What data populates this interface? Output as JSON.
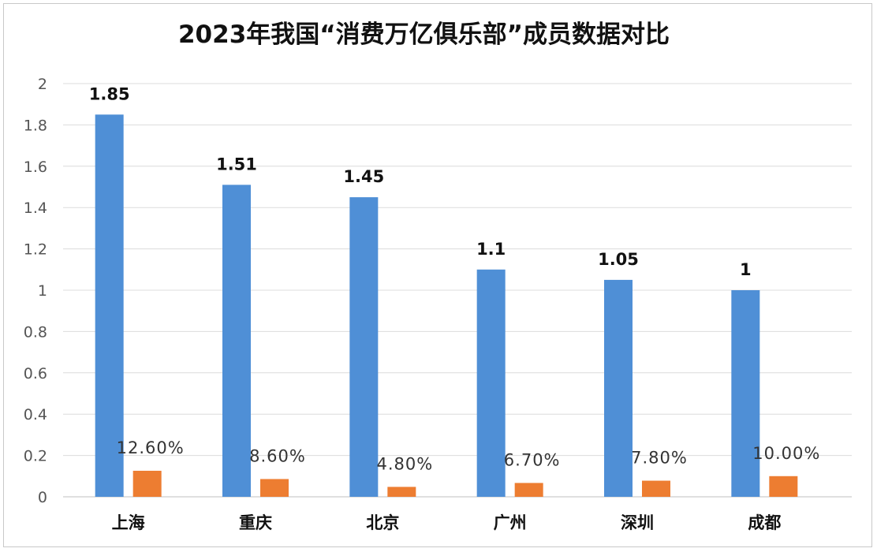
{
  "chart_data": {
    "type": "bar",
    "title": "2023年我国“消费万亿俱乐部”成员数据对比",
    "categories": [
      "上海",
      "重庆",
      "北京",
      "广州",
      "深圳",
      "成都"
    ],
    "ylim": [
      0,
      2
    ],
    "yticks": [
      0,
      0.2,
      0.4,
      0.6,
      0.8,
      1,
      1.2,
      1.4,
      1.6,
      1.8,
      2
    ],
    "grid": true,
    "series": [
      {
        "values": [
          1.85,
          1.51,
          1.45,
          1.1,
          1.05,
          1
        ],
        "labels": [
          "1.85",
          "1.51",
          "1.45",
          "1.1",
          "1.05",
          "1"
        ],
        "color": "#4f8fd6"
      },
      {
        "values": [
          0.126,
          0.086,
          0.048,
          0.067,
          0.078,
          0.1
        ],
        "labels": [
          "12.60%",
          "8.60%",
          "4.80%",
          "6.70%",
          "7.80%",
          "10.00%"
        ],
        "color": "#ed7d31"
      }
    ]
  }
}
